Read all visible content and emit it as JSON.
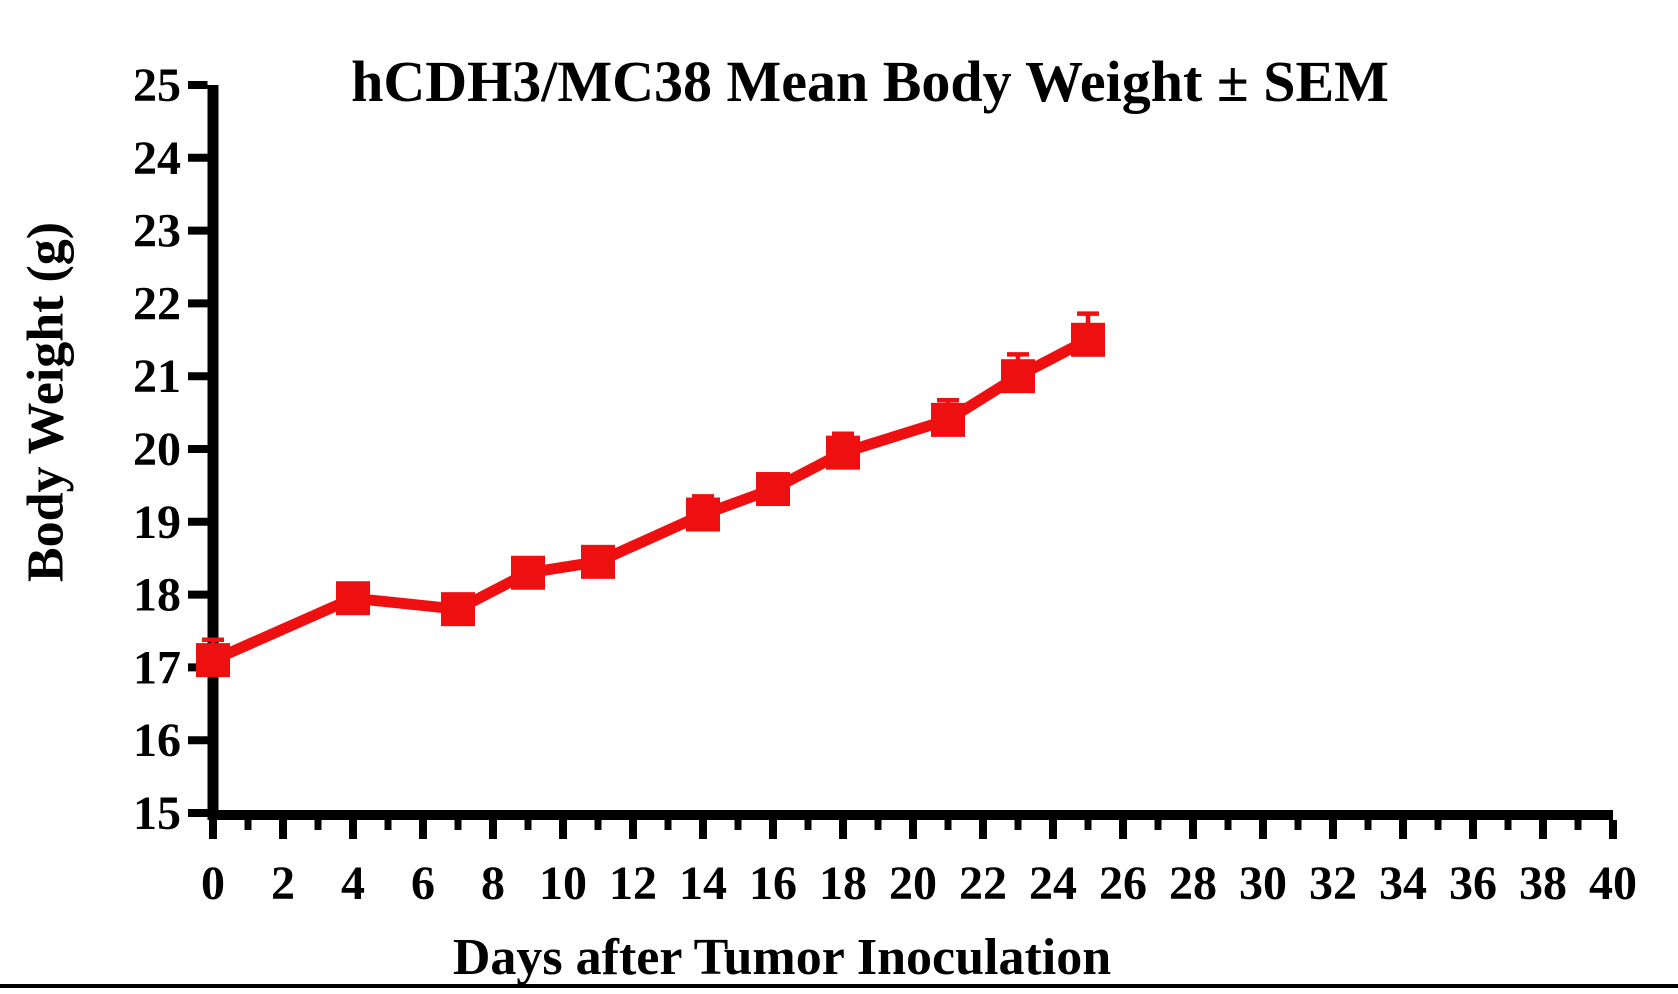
{
  "page": {
    "background": "#ffffff",
    "accent_red": "#ee1010",
    "axis_black": "#000000"
  },
  "chart_data": {
    "type": "line",
    "title": "hCDH3/MC38 Mean Body Weight ± SEM",
    "xlabel": "Days after Tumor Inoculation",
    "ylabel": "Body Weight (g)",
    "xlim": [
      0,
      40
    ],
    "ylim": [
      15,
      25
    ],
    "grid": false,
    "legend": "none",
    "error_bar_direction": "up",
    "x_tick_labels": [
      "0",
      "2",
      "4",
      "6",
      "8",
      "10",
      "12",
      "14",
      "16",
      "18",
      "20",
      "22",
      "24",
      "26",
      "28",
      "30",
      "32",
      "34",
      "36",
      "38",
      "40"
    ],
    "x_minor_tick_values": [
      1,
      3,
      5,
      7,
      9,
      11,
      13,
      15,
      17,
      19,
      21,
      23,
      25,
      27,
      29,
      31,
      33,
      35,
      37,
      39
    ],
    "y_tick_labels": [
      "15",
      "16",
      "17",
      "18",
      "19",
      "20",
      "21",
      "22",
      "23",
      "24",
      "25"
    ],
    "series": [
      {
        "name": "hCDH3/MC38 mean body weight",
        "color": "#ee1010",
        "marker": "filled-square",
        "x": [
          0,
          4,
          7,
          9,
          11,
          14,
          16,
          18,
          21,
          23,
          25
        ],
        "y": [
          17.1,
          17.95,
          17.8,
          18.3,
          18.45,
          19.1,
          19.45,
          19.95,
          20.4,
          21.0,
          21.5
        ],
        "sem": [
          0.28,
          0.1,
          0.1,
          0.1,
          0.1,
          0.25,
          0.1,
          0.26,
          0.27,
          0.3,
          0.36
        ]
      }
    ]
  }
}
